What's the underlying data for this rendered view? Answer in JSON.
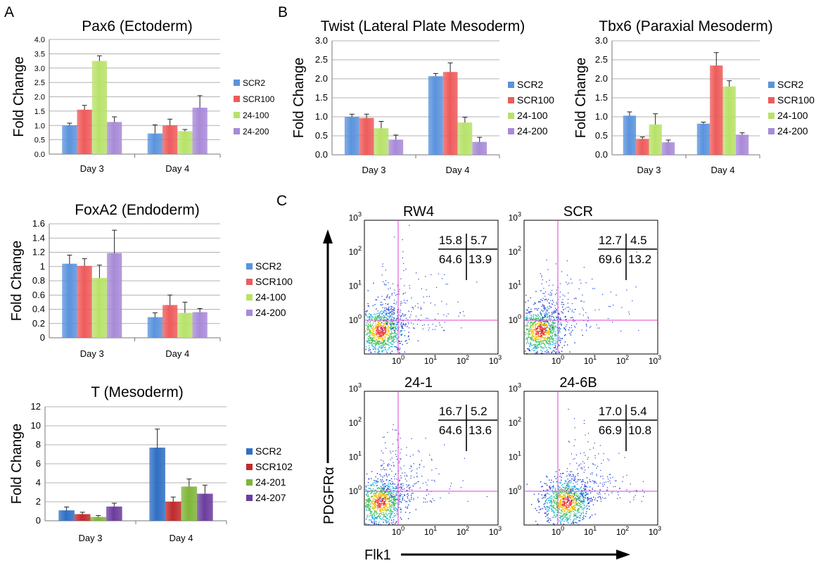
{
  "panel_labels": [
    "A",
    "B",
    "C"
  ],
  "facs_axes": {
    "y_label": "PDGFRα",
    "x_label": "Flk1"
  },
  "colors": {
    "blue": "#5b93dd",
    "red": "#ee5b5b",
    "green": "#b8e26a",
    "purple": "#a88ad8",
    "dblue": "#2f6fc4",
    "dred": "#c02a2a",
    "dgreen": "#7fb539",
    "dpurple": "#6c3d9e",
    "gate": "#e040d0"
  },
  "chart_data": [
    {
      "type": "bar",
      "title": "Pax6 (Ectoderm)",
      "ylabel": "Fold Change",
      "xlabel": "",
      "categories": [
        "Day 3",
        "Day 4"
      ],
      "ylim": [
        0,
        4.0
      ],
      "yticks": [
        "0.0",
        "0.5",
        "1.0",
        "1.5",
        "2.0",
        "2.5",
        "3.0",
        "3.5",
        "4.0"
      ],
      "grid": true,
      "legend": "right",
      "series": [
        {
          "name": "SCR2",
          "values": [
            1.0,
            0.72
          ],
          "errors": [
            0.08,
            0.3
          ]
        },
        {
          "name": "SCR100",
          "values": [
            1.55,
            1.0
          ],
          "errors": [
            0.15,
            0.22
          ]
        },
        {
          "name": "24-100",
          "values": [
            3.25,
            0.8
          ],
          "errors": [
            0.18,
            0.06
          ]
        },
        {
          "name": "24-200",
          "values": [
            1.12,
            1.62
          ],
          "errors": [
            0.18,
            0.42
          ]
        }
      ]
    },
    {
      "type": "bar",
      "title": "FoxA2 (Endoderm)",
      "ylabel": "Fold Change",
      "xlabel": "",
      "categories": [
        "Day 3",
        "Day 4"
      ],
      "ylim": [
        0,
        1.6
      ],
      "yticks": [
        "0",
        "0.2",
        "0.4",
        "0.6",
        "0.8",
        "1",
        "1.2",
        "1.4",
        "1.6"
      ],
      "grid": true,
      "legend": "right",
      "series": [
        {
          "name": "SCR2",
          "values": [
            1.04,
            0.29
          ],
          "errors": [
            0.12,
            0.06
          ]
        },
        {
          "name": "SCR100",
          "values": [
            1.01,
            0.46
          ],
          "errors": [
            0.1,
            0.14
          ]
        },
        {
          "name": "24-100",
          "values": [
            0.84,
            0.35
          ],
          "errors": [
            0.18,
            0.15
          ]
        },
        {
          "name": "24-200",
          "values": [
            1.19,
            0.36
          ],
          "errors": [
            0.32,
            0.05
          ]
        }
      ]
    },
    {
      "type": "bar",
      "title": "T (Mesoderm)",
      "ylabel": "Fold Change",
      "xlabel": "",
      "categories": [
        "Day 3",
        "Day 4"
      ],
      "ylim": [
        0,
        12
      ],
      "yticks": [
        "0",
        "2",
        "4",
        "6",
        "8",
        "10",
        "12"
      ],
      "grid": true,
      "legend": "right",
      "series": [
        {
          "name": "SCR2",
          "values": [
            1.1,
            7.7
          ],
          "errors": [
            0.35,
            1.95
          ]
        },
        {
          "name": "SCR102",
          "values": [
            0.7,
            2.0
          ],
          "errors": [
            0.2,
            0.5
          ]
        },
        {
          "name": "24-201",
          "values": [
            0.4,
            3.6
          ],
          "errors": [
            0.15,
            0.8
          ]
        },
        {
          "name": "24-207",
          "values": [
            1.5,
            2.85
          ],
          "errors": [
            0.35,
            0.9
          ]
        }
      ]
    },
    {
      "type": "bar",
      "title": "Twist (Lateral Plate Mesoderm)",
      "ylabel": "Fold Change",
      "xlabel": "",
      "categories": [
        "Day 3",
        "Day 4"
      ],
      "ylim": [
        0,
        3.0
      ],
      "yticks": [
        "0.0",
        "0.5",
        "1.0",
        "1.5",
        "2.0",
        "2.5",
        "3.0"
      ],
      "grid": true,
      "legend": "right",
      "series": [
        {
          "name": "SCR2",
          "values": [
            1.0,
            2.07
          ],
          "errors": [
            0.07,
            0.07
          ]
        },
        {
          "name": "SCR100",
          "values": [
            0.97,
            2.18
          ],
          "errors": [
            0.1,
            0.24
          ]
        },
        {
          "name": "24-100",
          "values": [
            0.7,
            0.85
          ],
          "errors": [
            0.18,
            0.14
          ]
        },
        {
          "name": "24-200",
          "values": [
            0.4,
            0.34
          ],
          "errors": [
            0.12,
            0.12
          ]
        }
      ]
    },
    {
      "type": "bar",
      "title": "Tbx6 (Paraxial Mesoderm)",
      "ylabel": "Fold Change",
      "xlabel": "",
      "categories": [
        "Day 3",
        "Day 4"
      ],
      "ylim": [
        0,
        3.0
      ],
      "yticks": [
        "0.0",
        "0.5",
        "1.0",
        "1.5",
        "2.0",
        "2.5",
        "3.0"
      ],
      "grid": true,
      "legend": "right",
      "series": [
        {
          "name": "SCR2",
          "values": [
            1.03,
            0.82
          ],
          "errors": [
            0.1,
            0.04
          ]
        },
        {
          "name": "SCR100",
          "values": [
            0.42,
            2.35
          ],
          "errors": [
            0.05,
            0.34
          ]
        },
        {
          "name": "24-100",
          "values": [
            0.8,
            1.8
          ],
          "errors": [
            0.28,
            0.15
          ]
        },
        {
          "name": "24-200",
          "values": [
            0.33,
            0.53
          ],
          "errors": [
            0.06,
            0.05
          ]
        }
      ]
    },
    {
      "type": "scatter",
      "title": "RW4",
      "xlabel": "Flk1",
      "ylabel": "PDGFRα",
      "scale": "log",
      "tick_labels": [
        "10^0",
        "10^1",
        "10^2",
        "10^3"
      ],
      "quadrants": {
        "upper_left": "15.8",
        "upper_right": "5.7",
        "lower_left": "64.6",
        "lower_right": "13.9"
      }
    },
    {
      "type": "scatter",
      "title": "SCR",
      "xlabel": "Flk1",
      "ylabel": "PDGFRα",
      "scale": "log",
      "tick_labels": [
        "10^0",
        "10^1",
        "10^2",
        "10^3"
      ],
      "quadrants": {
        "upper_left": "12.7",
        "upper_right": "4.5",
        "lower_left": "69.6",
        "lower_right": "13.2"
      }
    },
    {
      "type": "scatter",
      "title": "24-1",
      "xlabel": "Flk1",
      "ylabel": "PDGFRα",
      "scale": "log",
      "tick_labels": [
        "10^0",
        "10^1",
        "10^2",
        "10^3"
      ],
      "quadrants": {
        "upper_left": "16.7",
        "upper_right": "5.2",
        "lower_left": "64.6",
        "lower_right": "13.6"
      }
    },
    {
      "type": "scatter",
      "title": "24-6B",
      "xlabel": "Flk1",
      "ylabel": "PDGFRα",
      "scale": "log",
      "tick_labels": [
        "10^0",
        "10^1",
        "10^2",
        "10^3"
      ],
      "quadrants": {
        "upper_left": "17.0",
        "upper_right": "5.4",
        "lower_left": "66.9",
        "lower_right": "10.8"
      }
    }
  ]
}
